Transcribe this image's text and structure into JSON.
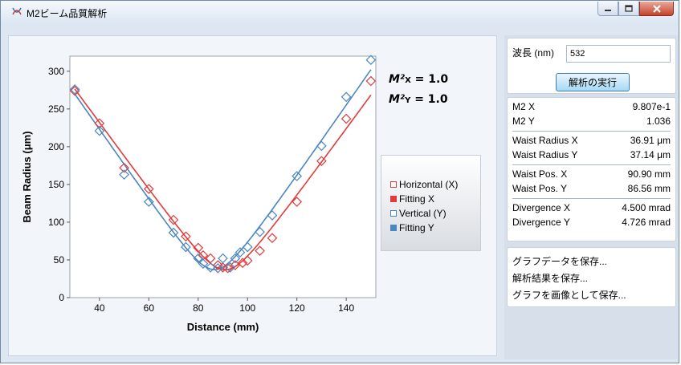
{
  "window": {
    "title": "M2ビーム品質解析",
    "controls": [
      "minimize",
      "maximize",
      "close"
    ]
  },
  "m2_display": {
    "x_label": "M²x",
    "x_prefix": "M²",
    "x_sub": "X",
    "x_value": " = 1.0",
    "y_prefix": "M²",
    "y_sub": "Y",
    "y_value": " = 1.0"
  },
  "wavelength": {
    "label": "波長 (nm)",
    "value": "532"
  },
  "run_button": "解析の実行",
  "results": {
    "m2": [
      {
        "label": "M2 X",
        "value": "9.807e-1"
      },
      {
        "label": "M2 Y",
        "value": "1.036"
      }
    ],
    "waist_radius": [
      {
        "label": "Waist Radius X",
        "value": "36.91 μm"
      },
      {
        "label": "Waist Radius Y",
        "value": "37.14 μm"
      }
    ],
    "waist_pos": [
      {
        "label": "Waist Pos. X",
        "value": "90.90 mm"
      },
      {
        "label": "Waist Pos. Y",
        "value": "86.56 mm"
      }
    ],
    "divergence": [
      {
        "label": "Divergence X",
        "value": "4.500 mrad"
      },
      {
        "label": "Divergence Y",
        "value": "4.726 mrad"
      }
    ]
  },
  "actions": [
    "グラフデータを保存...",
    "解析結果を保存...",
    "グラフを画像として保存..."
  ],
  "colors": {
    "horizontal": "#e23b3b",
    "vertical": "#4a86c0"
  },
  "chart_data": {
    "type": "scatter",
    "xlabel": "Distance (mm)",
    "ylabel": "Beam Radius (μm)",
    "xlim": [
      28,
      152
    ],
    "ylim": [
      0,
      320
    ],
    "xticks": [
      40,
      60,
      80,
      100,
      120,
      140
    ],
    "yticks": [
      0,
      50,
      100,
      150,
      200,
      250,
      300
    ],
    "grid": false,
    "legend_position": "right",
    "series": [
      {
        "name": "Horizontal (X)",
        "kind": "points",
        "marker": "diamond-open",
        "color": "#e23b3b",
        "points": [
          [
            30,
            274
          ],
          [
            40,
            231
          ],
          [
            50,
            172
          ],
          [
            60,
            144
          ],
          [
            70,
            103
          ],
          [
            75,
            81
          ],
          [
            80,
            66
          ],
          [
            82,
            56
          ],
          [
            85,
            52
          ],
          [
            88,
            43
          ],
          [
            90,
            40
          ],
          [
            92,
            39
          ],
          [
            95,
            43
          ],
          [
            98,
            46
          ],
          [
            100,
            49
          ],
          [
            105,
            62
          ],
          [
            110,
            79
          ],
          [
            120,
            127
          ],
          [
            130,
            181
          ],
          [
            140,
            237
          ],
          [
            150,
            287
          ]
        ]
      },
      {
        "name": "Fitting X",
        "kind": "line",
        "color": "#e23b3b",
        "waist_um": 36.91,
        "waist_pos_mm": 90.9,
        "divergence_mrad": 4.5,
        "x_range": [
          30,
          150
        ]
      },
      {
        "name": "Vertical (Y)",
        "kind": "points",
        "marker": "diamond-open",
        "color": "#4a86c0",
        "points": [
          [
            30,
            276
          ],
          [
            40,
            221
          ],
          [
            50,
            163
          ],
          [
            60,
            127
          ],
          [
            70,
            86
          ],
          [
            75,
            67
          ],
          [
            80,
            52
          ],
          [
            82,
            45
          ],
          [
            85,
            40
          ],
          [
            88,
            39
          ],
          [
            90,
            52
          ],
          [
            93,
            40
          ],
          [
            95,
            52
          ],
          [
            97,
            60
          ],
          [
            100,
            67
          ],
          [
            105,
            87
          ],
          [
            110,
            109
          ],
          [
            120,
            161
          ],
          [
            130,
            201
          ],
          [
            140,
            266
          ],
          [
            150,
            315
          ]
        ]
      },
      {
        "name": "Fitting Y",
        "kind": "line",
        "color": "#4a86c0",
        "waist_um": 37.14,
        "waist_pos_mm": 86.56,
        "divergence_mrad": 4.726,
        "x_range": [
          30,
          150
        ]
      }
    ]
  }
}
